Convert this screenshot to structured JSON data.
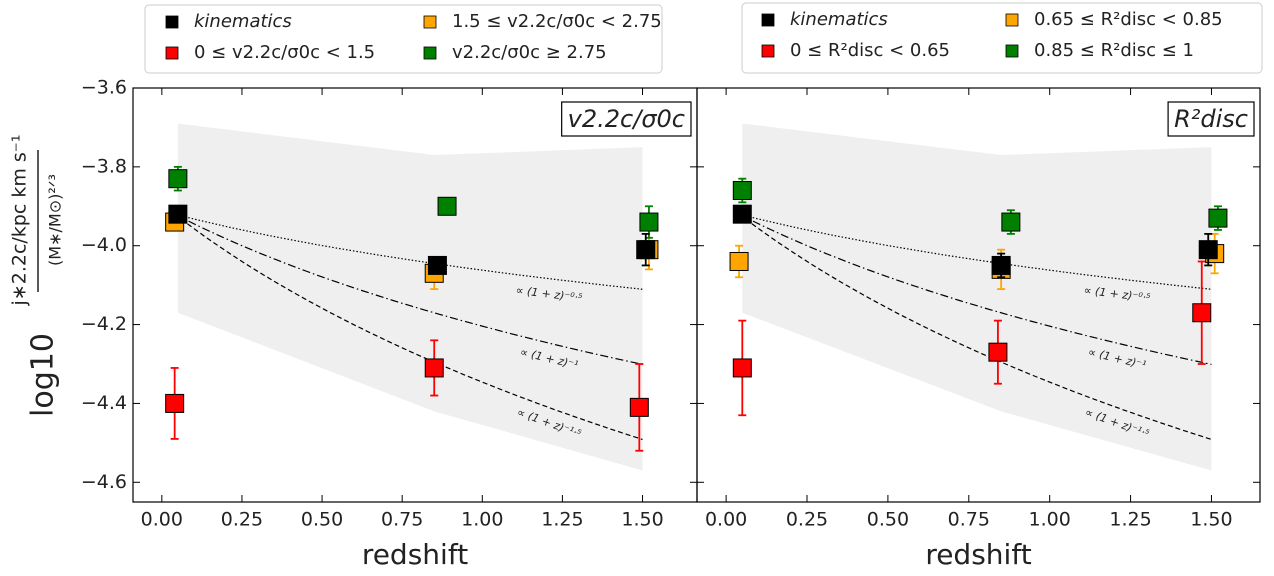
{
  "chart_data": [
    {
      "type": "scatter",
      "annotation": "v2.2c/σ0c",
      "x_label": "redshift",
      "y_label": "log10",
      "y_label_numerator": "j∗2.2c/kpc km s⁻¹",
      "y_label_denominator": "(M∗/M⊙)²ᐟ³",
      "xlim": [
        -0.09,
        1.67
      ],
      "ylim": [
        -4.65,
        -3.6
      ],
      "xticks": [
        {
          "value": 0,
          "label": "0.00"
        },
        {
          "value": 0.25,
          "label": "0.25"
        },
        {
          "value": 0.5,
          "label": "0.50"
        },
        {
          "value": 0.75,
          "label": "0.75"
        },
        {
          "value": 1,
          "label": "1.00"
        },
        {
          "value": 1.25,
          "label": "1.25"
        },
        {
          "value": 1.5,
          "label": "1.50"
        }
      ],
      "yticks": [
        {
          "value": -3.6,
          "label": "−3.6"
        },
        {
          "value": -3.8,
          "label": "−3.8"
        },
        {
          "value": -4.0,
          "label": "−4.0"
        },
        {
          "value": -4.2,
          "label": "−4.2"
        },
        {
          "value": -4.4,
          "label": "−4.4"
        },
        {
          "value": -4.6,
          "label": "−4.6"
        }
      ],
      "band": {
        "x": [
          0.05,
          0.85,
          1.5
        ],
        "upper": [
          -3.69,
          -3.77,
          -3.75
        ],
        "lower": [
          -4.17,
          -4.42,
          -4.57
        ],
        "color": "#efefef"
      },
      "model_x": [
        0.04,
        1.5
      ],
      "model_y0": -3.92,
      "models": [
        {
          "label": "∝ (1 + z)⁻⁰·⁵",
          "exponent": -0.5,
          "style": "dotted"
        },
        {
          "label": "∝ (1 + z)⁻¹",
          "exponent": -1,
          "style": "dashdot"
        },
        {
          "label": "∝ (1 + z)⁻¹·⁵",
          "exponent": -1.5,
          "style": "dashed"
        }
      ],
      "series": [
        {
          "name": "kinematics",
          "color": "#000000",
          "x": [
            0.05,
            0.86,
            1.51
          ],
          "values": [
            -3.92,
            -4.05,
            -4.01
          ],
          "errors": [
            0.01,
            0.02,
            0.04
          ]
        },
        {
          "name": "0 ≤ v2.2c/σ0c < 1.5",
          "color": "#ff0000",
          "x": [
            0.04,
            0.85,
            1.49
          ],
          "values": [
            -4.4,
            -4.31,
            -4.41
          ],
          "errors": [
            0.09,
            0.07,
            0.11
          ]
        },
        {
          "name": "1.5 ≤ v2.2c/σ0c < 2.75",
          "color": "#ffa500",
          "x": [
            0.04,
            0.85,
            1.52
          ],
          "values": [
            -3.94,
            -4.07,
            -4.01
          ],
          "errors": [
            0.02,
            0.04,
            0.05
          ]
        },
        {
          "name": "v2.2c/σ0c ≥ 2.75",
          "color": "#008000",
          "x": [
            0.05,
            0.89,
            1.52
          ],
          "values": [
            -3.83,
            -3.9,
            -3.94
          ],
          "errors": [
            0.03,
            0.01,
            0.04
          ]
        }
      ]
    },
    {
      "type": "scatter",
      "annotation": "R²disc",
      "x_label": "redshift",
      "xlim": [
        -0.09,
        1.65
      ],
      "ylim": [
        -4.65,
        -3.6
      ],
      "xticks": [
        {
          "value": 0,
          "label": "0.00"
        },
        {
          "value": 0.25,
          "label": "0.25"
        },
        {
          "value": 0.5,
          "label": "0.50"
        },
        {
          "value": 0.75,
          "label": "0.75"
        },
        {
          "value": 1,
          "label": "1.00"
        },
        {
          "value": 1.25,
          "label": "1.25"
        },
        {
          "value": 1.5,
          "label": "1.50"
        }
      ],
      "yticks": [
        -3.6,
        -3.8,
        -4.0,
        -4.2,
        -4.4,
        -4.6
      ],
      "band": {
        "x": [
          0.05,
          0.85,
          1.5
        ],
        "upper": [
          -3.69,
          -3.77,
          -3.75
        ],
        "lower": [
          -4.17,
          -4.42,
          -4.57
        ],
        "color": "#efefef"
      },
      "model_x": [
        0.04,
        1.5
      ],
      "model_y0": -3.92,
      "models": [
        {
          "label": "∝ (1 + z)⁻⁰·⁵",
          "exponent": -0.5,
          "style": "dotted"
        },
        {
          "label": "∝ (1 + z)⁻¹",
          "exponent": -1,
          "style": "dashdot"
        },
        {
          "label": "∝ (1 + z)⁻¹·⁵",
          "exponent": -1.5,
          "style": "dashed"
        }
      ],
      "series": [
        {
          "name": "kinematics",
          "color": "#000000",
          "x": [
            0.05,
            0.85,
            1.49
          ],
          "values": [
            -3.92,
            -4.05,
            -4.01
          ],
          "errors": [
            0.02,
            0.03,
            0.04
          ]
        },
        {
          "name": "0 ≤ R²disc < 0.65",
          "color": "#ff0000",
          "x": [
            0.05,
            0.84,
            1.47
          ],
          "values": [
            -4.31,
            -4.27,
            -4.17
          ],
          "errors": [
            0.12,
            0.08,
            0.13
          ]
        },
        {
          "name": "0.65 ≤ R²disc < 0.85",
          "color": "#ffa500",
          "x": [
            0.04,
            0.85,
            1.51
          ],
          "values": [
            -4.04,
            -4.06,
            -4.02
          ],
          "errors": [
            0.04,
            0.05,
            0.05
          ]
        },
        {
          "name": "0.85 ≤ R²disc ≤ 1",
          "color": "#008000",
          "x": [
            0.05,
            0.88,
            1.52
          ],
          "values": [
            -3.86,
            -3.94,
            -3.93
          ],
          "errors": [
            0.03,
            0.03,
            0.03
          ]
        }
      ]
    }
  ]
}
